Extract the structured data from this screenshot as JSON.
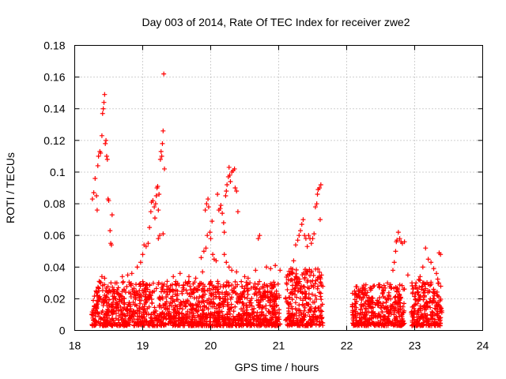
{
  "chart_data": {
    "type": "scatter",
    "title": "Day 003 of 2014, Rate Of TEC Index for receiver zwe2",
    "xlabel": "GPS time / hours",
    "ylabel": "ROTI / TECUs",
    "xlim": [
      18,
      24
    ],
    "ylim": [
      0,
      0.18
    ],
    "x_ticks": [
      "18",
      "19",
      "20",
      "21",
      "22",
      "23",
      "24"
    ],
    "y_ticks": [
      "0",
      "0.02",
      "0.04",
      "0.06",
      "0.08",
      "0.1",
      "0.12",
      "0.14",
      "0.16",
      "0.18"
    ],
    "grid": true,
    "marker": "+",
    "color": "#ff0000",
    "series": [
      {
        "name": "ROTI",
        "points": [
          [
            18.26,
            0.083
          ],
          [
            18.28,
            0.087
          ],
          [
            18.3,
            0.096
          ],
          [
            18.32,
            0.085
          ],
          [
            18.33,
            0.076
          ],
          [
            18.34,
            0.104
          ],
          [
            18.35,
            0.11
          ],
          [
            18.37,
            0.113
          ],
          [
            18.38,
            0.112
          ],
          [
            18.4,
            0.123
          ],
          [
            18.41,
            0.137
          ],
          [
            18.42,
            0.14
          ],
          [
            18.43,
            0.144
          ],
          [
            18.44,
            0.149
          ],
          [
            18.45,
            0.118
          ],
          [
            18.46,
            0.12
          ],
          [
            18.47,
            0.11
          ],
          [
            18.48,
            0.108
          ],
          [
            18.49,
            0.083
          ],
          [
            18.5,
            0.082
          ],
          [
            18.52,
            0.063
          ],
          [
            18.53,
            0.055
          ],
          [
            18.54,
            0.054
          ],
          [
            18.55,
            0.073
          ],
          [
            18.4,
            0.034
          ],
          [
            18.36,
            0.031
          ],
          [
            18.44,
            0.033
          ],
          [
            18.62,
            0.03
          ],
          [
            18.7,
            0.034
          ],
          [
            18.78,
            0.035
          ],
          [
            18.84,
            0.036
          ],
          [
            18.92,
            0.04
          ],
          [
            18.97,
            0.043
          ],
          [
            19.0,
            0.048
          ],
          [
            19.02,
            0.054
          ],
          [
            19.05,
            0.053
          ],
          [
            19.08,
            0.055
          ],
          [
            19.1,
            0.065
          ],
          [
            19.12,
            0.075
          ],
          [
            19.13,
            0.081
          ],
          [
            19.15,
            0.082
          ],
          [
            19.17,
            0.078
          ],
          [
            19.18,
            0.071
          ],
          [
            19.19,
            0.08
          ],
          [
            19.2,
            0.085
          ],
          [
            19.21,
            0.09
          ],
          [
            19.22,
            0.091
          ],
          [
            19.23,
            0.076
          ],
          [
            19.24,
            0.086
          ],
          [
            19.25,
            0.06
          ],
          [
            19.26,
            0.108
          ],
          [
            19.27,
            0.113
          ],
          [
            19.28,
            0.11
          ],
          [
            19.29,
            0.118
          ],
          [
            19.3,
            0.126
          ],
          [
            19.31,
            0.162
          ],
          [
            19.32,
            0.102
          ],
          [
            19.23,
            0.058
          ],
          [
            19.3,
            0.061
          ],
          [
            19.36,
            0.031
          ],
          [
            19.45,
            0.034
          ],
          [
            19.55,
            0.036
          ],
          [
            19.68,
            0.034
          ],
          [
            19.78,
            0.033
          ],
          [
            19.86,
            0.046
          ],
          [
            19.9,
            0.05
          ],
          [
            19.95,
            0.06
          ],
          [
            19.93,
            0.052
          ],
          [
            19.88,
            0.037
          ],
          [
            19.92,
            0.076
          ],
          [
            19.94,
            0.08
          ],
          [
            19.96,
            0.083
          ],
          [
            19.97,
            0.078
          ],
          [
            19.99,
            0.062
          ],
          [
            20.0,
            0.058
          ],
          [
            20.02,
            0.069
          ],
          [
            20.03,
            0.048
          ],
          [
            20.05,
            0.045
          ],
          [
            20.08,
            0.044
          ],
          [
            20.1,
            0.086
          ],
          [
            20.12,
            0.076
          ],
          [
            20.14,
            0.077
          ],
          [
            20.15,
            0.079
          ],
          [
            20.17,
            0.074
          ],
          [
            20.19,
            0.068
          ],
          [
            20.2,
            0.062
          ],
          [
            20.22,
            0.085
          ],
          [
            20.23,
            0.088
          ],
          [
            20.24,
            0.092
          ],
          [
            20.26,
            0.097
          ],
          [
            20.27,
            0.103
          ],
          [
            20.28,
            0.098
          ],
          [
            20.29,
            0.094
          ],
          [
            20.31,
            0.1
          ],
          [
            20.33,
            0.101
          ],
          [
            20.35,
            0.102
          ],
          [
            20.36,
            0.09
          ],
          [
            20.38,
            0.088
          ],
          [
            20.4,
            0.075
          ],
          [
            20.2,
            0.048
          ],
          [
            20.23,
            0.043
          ],
          [
            20.27,
            0.04
          ],
          [
            20.31,
            0.038
          ],
          [
            20.38,
            0.037
          ],
          [
            20.5,
            0.034
          ],
          [
            20.55,
            0.033
          ],
          [
            20.66,
            0.038
          ],
          [
            20.7,
            0.058
          ],
          [
            20.72,
            0.06
          ],
          [
            20.82,
            0.04
          ],
          [
            20.88,
            0.039
          ],
          [
            20.95,
            0.041
          ],
          [
            21.02,
            0.038
          ],
          [
            21.18,
            0.039
          ],
          [
            21.22,
            0.044
          ],
          [
            21.25,
            0.054
          ],
          [
            21.28,
            0.057
          ],
          [
            21.3,
            0.06
          ],
          [
            21.32,
            0.063
          ],
          [
            21.34,
            0.067
          ],
          [
            21.36,
            0.07
          ],
          [
            21.38,
            0.06
          ],
          [
            21.4,
            0.058
          ],
          [
            21.42,
            0.053
          ],
          [
            21.44,
            0.06
          ],
          [
            21.46,
            0.058
          ],
          [
            21.48,
            0.055
          ],
          [
            21.5,
            0.058
          ],
          [
            21.52,
            0.061
          ],
          [
            21.54,
            0.078
          ],
          [
            21.56,
            0.08
          ],
          [
            21.57,
            0.086
          ],
          [
            21.58,
            0.089
          ],
          [
            21.6,
            0.09
          ],
          [
            21.62,
            0.092
          ],
          [
            21.61,
            0.07
          ],
          [
            21.63,
            0.035
          ],
          [
            22.15,
            0.021
          ],
          [
            22.22,
            0.024
          ],
          [
            22.28,
            0.018
          ],
          [
            22.36,
            0.02
          ],
          [
            22.45,
            0.019
          ],
          [
            22.52,
            0.027
          ],
          [
            22.6,
            0.03
          ],
          [
            22.66,
            0.027
          ],
          [
            22.68,
            0.038
          ],
          [
            22.7,
            0.043
          ],
          [
            22.72,
            0.05
          ],
          [
            22.73,
            0.056
          ],
          [
            22.74,
            0.057
          ],
          [
            22.76,
            0.062
          ],
          [
            22.78,
            0.058
          ],
          [
            22.8,
            0.056
          ],
          [
            22.82,
            0.055
          ],
          [
            22.85,
            0.056
          ],
          [
            22.9,
            0.035
          ],
          [
            22.96,
            0.03
          ],
          [
            23.02,
            0.03
          ],
          [
            23.08,
            0.034
          ],
          [
            23.12,
            0.04
          ],
          [
            23.16,
            0.052
          ],
          [
            23.2,
            0.045
          ],
          [
            23.24,
            0.043
          ],
          [
            23.28,
            0.039
          ],
          [
            23.32,
            0.036
          ],
          [
            23.36,
            0.049
          ],
          [
            23.38,
            0.048
          ]
        ]
      }
    ]
  }
}
